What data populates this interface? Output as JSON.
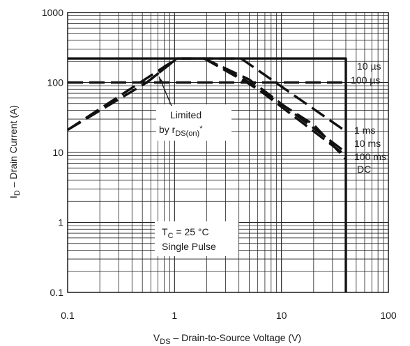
{
  "chart_data": {
    "type": "line",
    "x_scale": "log",
    "y_scale": "log",
    "xlim": [
      0.1,
      100
    ],
    "ylim": [
      0.1,
      1000
    ],
    "grid": true,
    "x_ticks": [
      "0.1",
      "1",
      "10",
      "100"
    ],
    "y_ticks": [
      "0.1",
      "1",
      "10",
      "100",
      "1000"
    ],
    "xlabel": {
      "pre": "V",
      "sub": "DS",
      "post": " – Drain-to-Source Voltage (V)"
    },
    "ylabel": {
      "pre": "I",
      "sub": "D",
      "post": " – Drain Current (A)"
    },
    "annotations": {
      "limited_line1": "Limited",
      "limited_line2_pre": "by r",
      "limited_line2_sub": "DS(on)",
      "limited_line2_post": "*",
      "tc_pre": "T",
      "tc_sub": "C",
      "tc_post": " = 25 °C",
      "single_pulse": "Single Pulse"
    },
    "series": [
      {
        "name": "10 µs",
        "style": "solid",
        "points": [
          [
            0.1,
            220
          ],
          [
            40,
            220
          ],
          [
            40,
            0.1
          ]
        ]
      },
      {
        "name": "100 µs",
        "style": "dashed",
        "points": [
          [
            0.1,
            100
          ],
          [
            1.5,
            100
          ],
          [
            3.3,
            100
          ],
          [
            40,
            100
          ]
        ]
      },
      {
        "name": "1 ms",
        "style": "dashed",
        "points": [
          [
            0.1,
            21
          ],
          [
            1.05,
            220
          ],
          [
            4.2,
            220
          ],
          [
            40,
            20
          ]
        ]
      },
      {
        "name": "10 ms",
        "style": "dashed",
        "points": [
          [
            0.55,
            100
          ],
          [
            1.05,
            220
          ],
          [
            1.9,
            220
          ],
          [
            5,
            110
          ],
          [
            40,
            10
          ]
        ]
      },
      {
        "name": "100 ms",
        "style": "dashed",
        "points": [
          [
            1.9,
            220
          ],
          [
            5,
            100
          ],
          [
            40,
            9
          ]
        ]
      },
      {
        "name": "DC",
        "style": "dashed",
        "points": [
          [
            1.9,
            220
          ],
          [
            5,
            95
          ],
          [
            20,
            25
          ],
          [
            40,
            8
          ]
        ]
      },
      {
        "name": "Limited by rDS(on)",
        "style": "dashed",
        "points": [
          [
            0.1,
            21
          ],
          [
            0.55,
            100
          ],
          [
            1.05,
            220
          ]
        ]
      }
    ]
  }
}
